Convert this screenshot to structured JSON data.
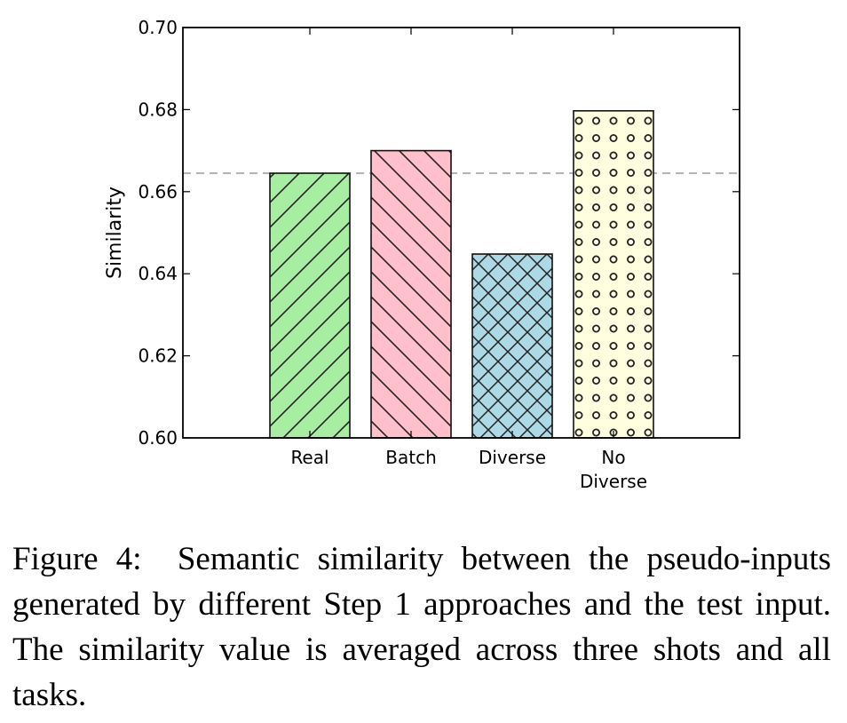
{
  "chart_data": {
    "type": "bar",
    "categories": [
      "Real",
      "Batch",
      "Diverse",
      "No\nDiverse"
    ],
    "values": [
      0.6645,
      0.67,
      0.6448,
      0.6797
    ],
    "colors": [
      "#a8eea2",
      "#ffc0cb",
      "#add8e6",
      "#ffffe0"
    ],
    "hatches": [
      "forward-diagonal",
      "back-diagonal",
      "cross-hatch",
      "circles"
    ],
    "reference_line": 0.6645,
    "ylabel": "Similarity",
    "xlabel": "",
    "ylim": [
      0.6,
      0.7
    ],
    "yticks": [
      "0.60",
      "0.62",
      "0.64",
      "0.66",
      "0.68",
      "0.70"
    ],
    "grid": false
  },
  "caption": {
    "label": "Figure 4:",
    "text": "Semantic similarity between the pseudo-inputs generated by different Step 1 approaches and the test input. The similarity value is averaged across three shots and all tasks."
  }
}
